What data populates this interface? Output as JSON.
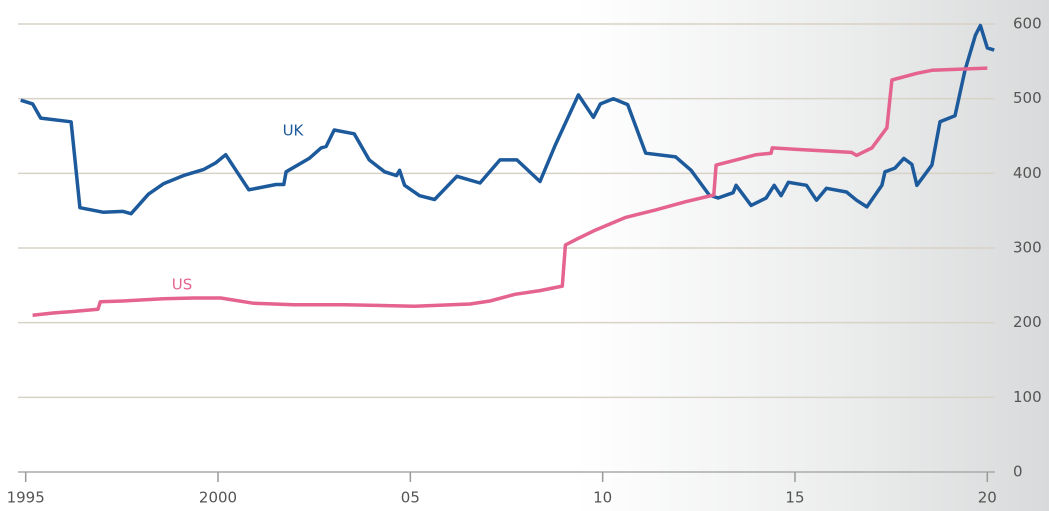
{
  "chart_data": {
    "type": "line",
    "xlim": [
      1994.8,
      2020.2
    ],
    "ylim": [
      0,
      600
    ],
    "xticks": [
      1995,
      2000,
      {
        "value": 2005,
        "label": "05"
      },
      {
        "value": 2010,
        "label": "10"
      },
      {
        "value": 2015,
        "label": "15"
      },
      {
        "value": 2020,
        "label": "20"
      }
    ],
    "yticks": [
      0,
      100,
      200,
      300,
      400,
      500,
      600
    ],
    "grid": true,
    "series": [
      {
        "name": "UK",
        "color": "#1d5a9c",
        "x": [
          1994.87,
          1995.18,
          1995.39,
          1996.18,
          1996.41,
          1997.01,
          1997.53,
          1997.74,
          1998.19,
          1998.58,
          1999.1,
          1999.62,
          1999.94,
          2000.2,
          2000.8,
          2001.51,
          2001.71,
          2001.77,
          2002.37,
          2002.68,
          2002.81,
          2003.02,
          2003.54,
          2003.93,
          2004.33,
          2004.64,
          2004.72,
          2004.85,
          2005.24,
          2005.63,
          2006.21,
          2006.81,
          2007.33,
          2007.77,
          2008.37,
          2008.77,
          2009.37,
          2009.76,
          2009.94,
          2010.28,
          2010.65,
          2011.12,
          2011.9,
          2012.3,
          2012.77,
          2013.0,
          2013.39,
          2013.47,
          2013.86,
          2014.25,
          2014.46,
          2014.64,
          2014.83,
          2015.3,
          2015.56,
          2015.82,
          2016.34,
          2016.6,
          2016.87,
          2017.26,
          2017.34,
          2017.6,
          2017.83,
          2018.04,
          2018.17,
          2018.56,
          2018.77,
          2019.16,
          2019.42,
          2019.69,
          2019.82,
          2020.0,
          2020.18
        ],
        "values": [
          498,
          493,
          474,
          469,
          354,
          348,
          349,
          346,
          372,
          386,
          397,
          405,
          414,
          425,
          378,
          385,
          385,
          402,
          420,
          434,
          436,
          458,
          453,
          418,
          402,
          397,
          404,
          384,
          370,
          365,
          396,
          387,
          418,
          418,
          389,
          438,
          505,
          475,
          493,
          500,
          492,
          427,
          422,
          404,
          371,
          367,
          374,
          384,
          357,
          367,
          384,
          370,
          388,
          384,
          364,
          380,
          375,
          364,
          355,
          384,
          402,
          407,
          420,
          412,
          384,
          411,
          469,
          477,
          538,
          585,
          598,
          568,
          565
        ]
      },
      {
        "name": "US",
        "color": "#e5638f",
        "x": [
          1995.18,
          1995.71,
          1996.23,
          1996.88,
          1996.94,
          1997.53,
          1998.58,
          1999.36,
          2000.07,
          2000.93,
          2001.97,
          2003.28,
          2005.11,
          2006.55,
          2007.07,
          2007.72,
          2008.37,
          2008.95,
          2009.03,
          2009.29,
          2009.81,
          2010.6,
          2011.38,
          2012.16,
          2012.89,
          2012.95,
          2013.47,
          2013.99,
          2014.38,
          2014.41,
          2015.04,
          2016.47,
          2016.6,
          2017.0,
          2017.39,
          2017.52,
          2018.17,
          2018.56,
          2020.0
        ],
        "values": [
          210,
          213,
          215,
          218,
          228,
          229,
          232,
          233,
          233,
          226,
          224,
          224,
          222,
          225,
          229,
          238,
          243,
          249,
          304,
          311,
          324,
          341,
          351,
          362,
          371,
          411,
          418,
          425,
          427,
          434,
          432,
          428,
          424,
          434,
          461,
          525,
          534,
          538,
          541
        ]
      }
    ]
  }
}
